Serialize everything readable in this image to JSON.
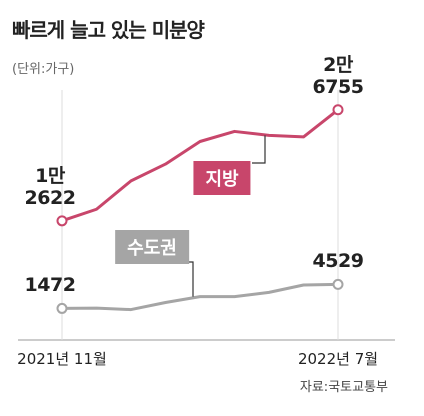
{
  "chart_data": {
    "type": "line",
    "title": "빠르게 늘고 있는 미분양",
    "subtitle": "(단위:가구)",
    "source": "자료:국토교통부",
    "categories": [
      "2021년 11월",
      null,
      null,
      null,
      null,
      null,
      null,
      null,
      "2022년 7월"
    ],
    "ylim": [
      0,
      28000
    ],
    "series": [
      {
        "name": "지방",
        "color": "#c8466b",
        "values": [
          12622,
          14094,
          17710,
          19845,
          22718,
          24000,
          23500,
          23300,
          26755
        ],
        "value_labels": [
          "1만\n2622",
          null,
          null,
          null,
          null,
          null,
          null,
          null,
          "2만\n6755"
        ]
      },
      {
        "name": "수도권",
        "color": "#a5a5a5",
        "values": [
          1472,
          1509,
          1325,
          2227,
          2974,
          2979,
          3514,
          4456,
          4529
        ],
        "value_labels": [
          "1472",
          null,
          null,
          null,
          null,
          null,
          null,
          null,
          "4529"
        ]
      }
    ]
  }
}
